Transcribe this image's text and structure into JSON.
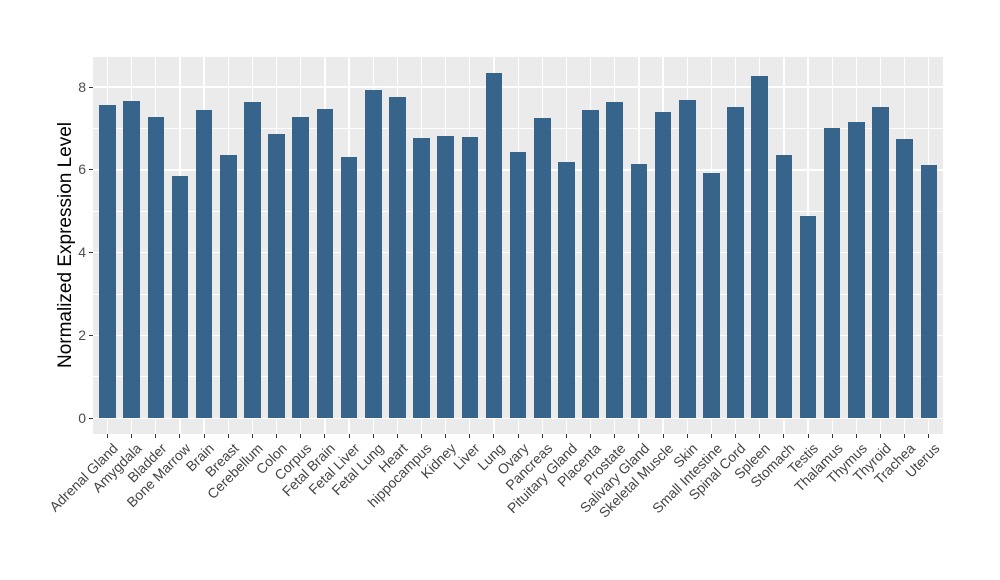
{
  "chart_data": {
    "type": "bar",
    "title": "",
    "xlabel": "",
    "ylabel": "Normalized Expression Level",
    "legend": "none",
    "grid": "on",
    "categories": [
      "Adrenal Gland",
      "Amygdala",
      "Bladder",
      "Bone Marrow",
      "Brain",
      "Breast",
      "Cerebellum",
      "Colon",
      "Corpus",
      "Fetal Brain",
      "Fetal Liver",
      "Fetal Lung",
      "Heart",
      "hippocampus",
      "Kidney",
      "Liver",
      "Lung",
      "Ovary",
      "Pancreas",
      "Pituitary Gland",
      "Placenta",
      "Prostate",
      "Salivary Gland",
      "Skeletal Muscle",
      "Skin",
      "Small Intestine",
      "Spinal Cord",
      "Spleen",
      "Stomach",
      "Testis",
      "Thalamus",
      "Thymus",
      "Thyroid",
      "Trachea",
      "Uterus"
    ],
    "values": [
      7.57,
      7.66,
      7.29,
      5.86,
      7.45,
      6.36,
      7.64,
      6.87,
      7.28,
      7.47,
      6.32,
      7.94,
      7.76,
      6.76,
      6.82,
      6.8,
      8.33,
      6.44,
      7.26,
      6.2,
      7.44,
      7.63,
      6.15,
      7.41,
      7.69,
      5.93,
      7.52,
      8.28,
      6.35,
      4.88,
      7.02,
      7.16,
      7.52,
      6.74,
      6.12
    ],
    "yticks_major": [
      0,
      2,
      4,
      6,
      8
    ],
    "yticks_minor": [
      1,
      3,
      5,
      7
    ],
    "ylim": [
      -0.37,
      8.74
    ],
    "colors": {
      "bar_fill": "#36648B",
      "panel_bg": "#EBEBEB",
      "grid": "#FFFFFF",
      "tick_mark": "#333333",
      "axis_text": "#4D4D4D"
    }
  }
}
